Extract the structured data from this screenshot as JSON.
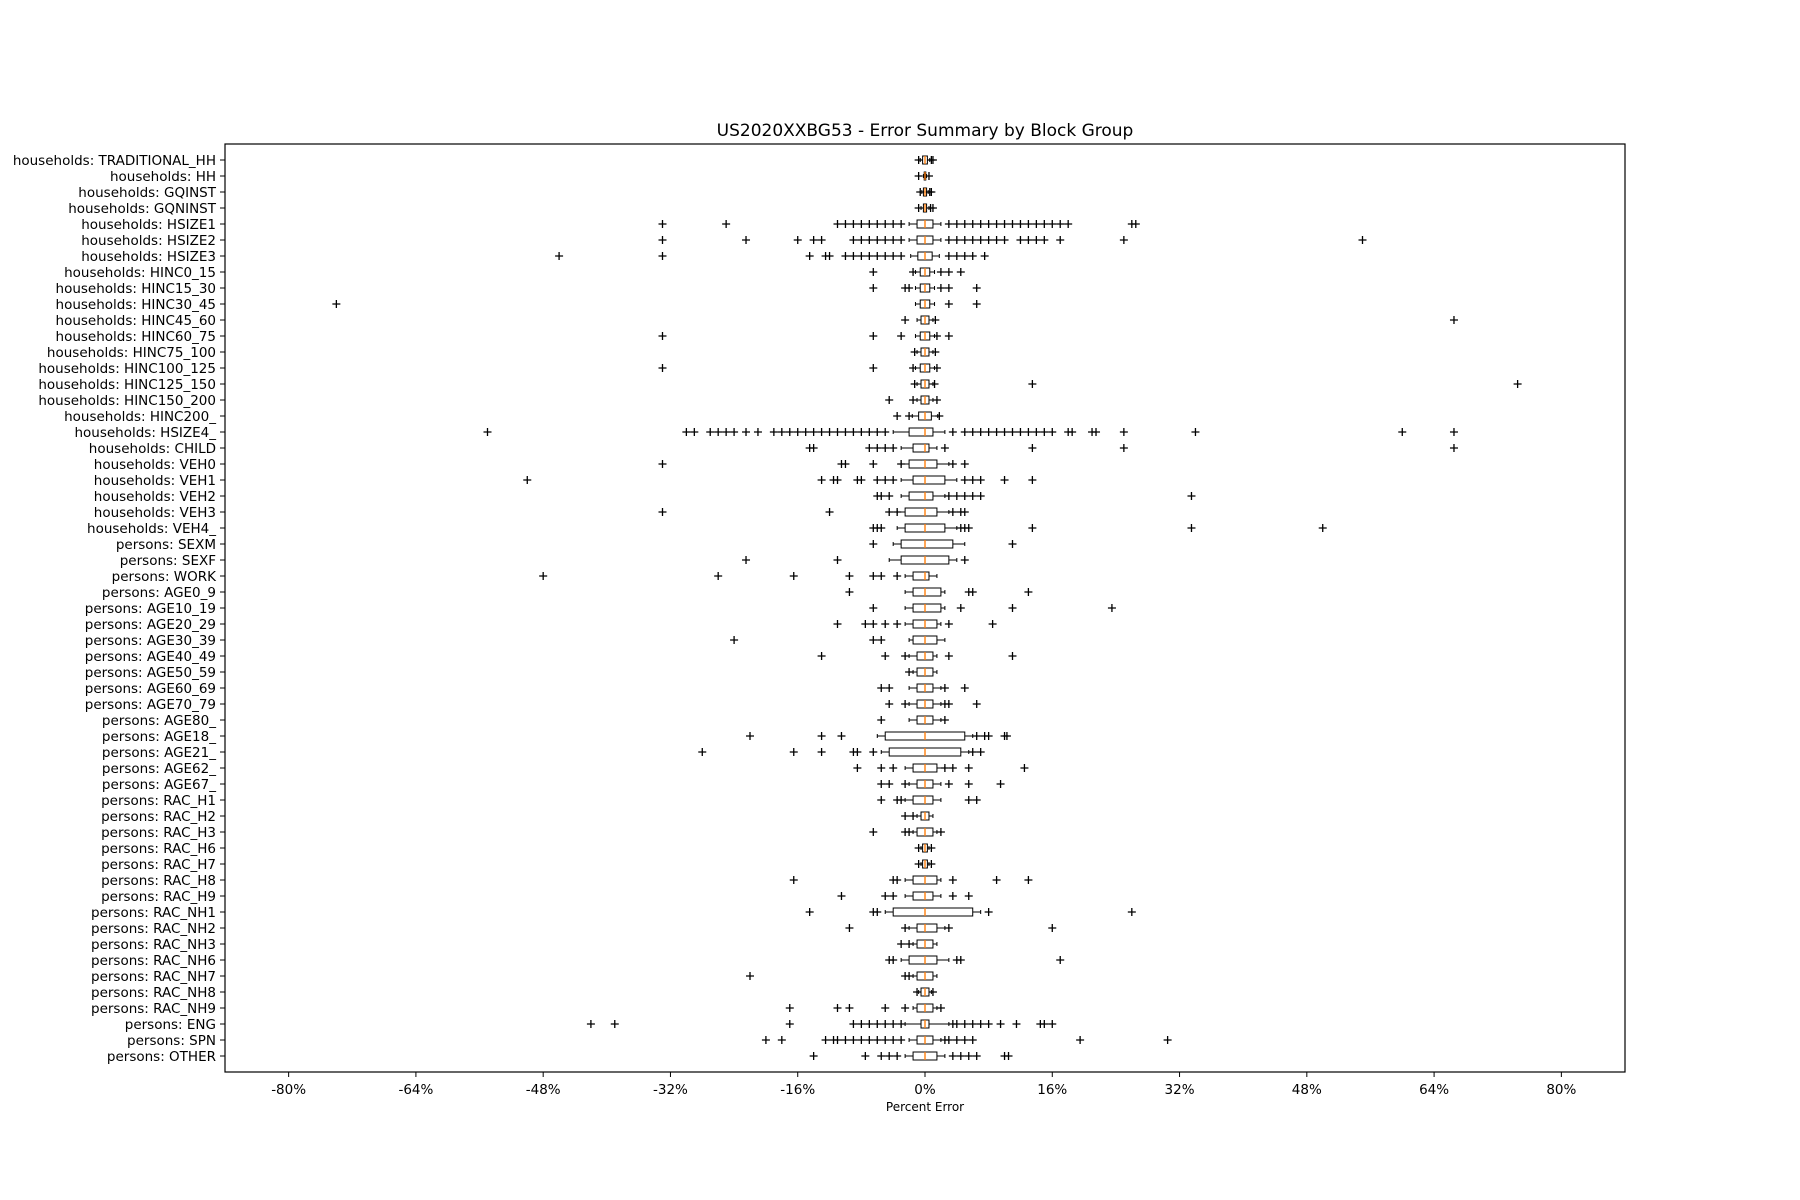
{
  "chart_data": {
    "type": "boxplot",
    "title": "US2020XXBG53 - Error Summary by Block Group",
    "xlabel": "Percent Error",
    "ylabel": "",
    "xlim": [
      -88,
      88
    ],
    "xticks": [
      -80,
      -64,
      -48,
      -32,
      -16,
      0,
      16,
      32,
      48,
      64,
      80
    ],
    "xtick_labels": [
      "-80%",
      "-64%",
      "-48%",
      "-32%",
      "-16%",
      "0%",
      "16%",
      "32%",
      "48%",
      "64%",
      "80%"
    ],
    "orientation": "horizontal",
    "grid": false,
    "colors": {
      "median": "#ff7f0e",
      "box": "#000000",
      "flier": "#000000"
    },
    "categories": [
      "households: TRADITIONAL_HH",
      "households: HH",
      "households: GQINST",
      "households: GQNINST",
      "households: HSIZE1",
      "households: HSIZE2",
      "households: HSIZE3",
      "households: HINC0_15",
      "households: HINC15_30",
      "households: HINC30_45",
      "households: HINC45_60",
      "households: HINC60_75",
      "households: HINC75_100",
      "households: HINC100_125",
      "households: HINC125_150",
      "households: HINC150_200",
      "households: HINC200_",
      "households: HSIZE4_",
      "households: CHILD",
      "households: VEH0",
      "households: VEH1",
      "households: VEH2",
      "households: VEH3",
      "households: VEH4_",
      "persons: SEXM",
      "persons: SEXF",
      "persons: WORK",
      "persons: AGE0_9",
      "persons: AGE10_19",
      "persons: AGE20_29",
      "persons: AGE30_39",
      "persons: AGE40_49",
      "persons: AGE50_59",
      "persons: AGE60_69",
      "persons: AGE70_79",
      "persons: AGE80_",
      "persons: AGE18_",
      "persons: AGE21_",
      "persons: AGE62_",
      "persons: AGE67_",
      "persons: RAC_H1",
      "persons: RAC_H2",
      "persons: RAC_H3",
      "persons: RAC_H6",
      "persons: RAC_H7",
      "persons: RAC_H8",
      "persons: RAC_H9",
      "persons: RAC_NH1",
      "persons: RAC_NH2",
      "persons: RAC_NH3",
      "persons: RAC_NH6",
      "persons: RAC_NH7",
      "persons: RAC_NH8",
      "persons: RAC_NH9",
      "persons: ENG",
      "persons: SPN",
      "persons: OTHER"
    ],
    "series": [
      {
        "q1": -0.3,
        "median": 0,
        "q3": 0.3,
        "whisker": [
          -0.6,
          0.6
        ],
        "fliers": [
          -0.8,
          0.8,
          1.0
        ]
      },
      {
        "q1": -0.1,
        "median": 0,
        "q3": 0.1,
        "whisker": [
          -0.2,
          0.2
        ],
        "fliers": [
          -0.8,
          0.5
        ]
      },
      {
        "q1": -0.2,
        "median": 0,
        "q3": 0.2,
        "whisker": [
          -0.4,
          0.4
        ],
        "fliers": [
          -0.6,
          0.6,
          0.8
        ]
      },
      {
        "q1": -0.2,
        "median": 0,
        "q3": 0.2,
        "whisker": [
          -0.5,
          0.5
        ],
        "fliers": [
          -0.8,
          0.7,
          1.0
        ]
      },
      {
        "q1": -1.0,
        "median": 0,
        "q3": 1.0,
        "whisker": [
          -2,
          2
        ],
        "fliers": [
          -33,
          -25,
          -11,
          -10,
          -9,
          -8,
          -7,
          -6,
          -5,
          -4,
          -3,
          3,
          4,
          5,
          6,
          7,
          8,
          9,
          10,
          11,
          12,
          13,
          14,
          15,
          16,
          17,
          18,
          26,
          26.5
        ]
      },
      {
        "q1": -1.0,
        "median": 0,
        "q3": 1.0,
        "whisker": [
          -2,
          2
        ],
        "fliers": [
          -33,
          -22.5,
          -16,
          -14,
          -13,
          -9,
          -8,
          -7,
          -6,
          -5,
          -4,
          -3,
          3,
          4,
          5,
          6,
          7,
          8,
          9,
          10,
          12,
          13,
          14,
          15,
          17,
          25,
          55
        ]
      },
      {
        "q1": -0.9,
        "median": 0,
        "q3": 0.9,
        "whisker": [
          -1.8,
          1.8
        ],
        "fliers": [
          -46,
          -33,
          -14.5,
          -12.5,
          -12,
          -10,
          -9,
          -8,
          -7,
          -6,
          -5,
          -4,
          -3,
          3,
          4,
          5,
          6,
          7.5
        ]
      },
      {
        "q1": -0.6,
        "median": 0,
        "q3": 0.6,
        "whisker": [
          -1.2,
          1.2
        ],
        "fliers": [
          -6.5,
          -1.5,
          2,
          3,
          4.5
        ]
      },
      {
        "q1": -0.6,
        "median": 0,
        "q3": 0.6,
        "whisker": [
          -1.2,
          1.2
        ],
        "fliers": [
          -6.5,
          -2.5,
          -2,
          2,
          3,
          6.5
        ]
      },
      {
        "q1": -0.6,
        "median": 0,
        "q3": 0.6,
        "whisker": [
          -1.2,
          1.2
        ],
        "fliers": [
          -74,
          3,
          6.5
        ]
      },
      {
        "q1": -0.5,
        "median": 0,
        "q3": 0.5,
        "whisker": [
          -1,
          1
        ],
        "fliers": [
          -2.5,
          1.3,
          66.5
        ]
      },
      {
        "q1": -0.6,
        "median": 0,
        "q3": 0.6,
        "whisker": [
          -1.2,
          1.2
        ],
        "fliers": [
          -33,
          -6.5,
          -3,
          1.5,
          3
        ]
      },
      {
        "q1": -0.5,
        "median": 0,
        "q3": 0.5,
        "whisker": [
          -1,
          1
        ],
        "fliers": [
          -1.3,
          1.3
        ]
      },
      {
        "q1": -0.6,
        "median": 0,
        "q3": 0.6,
        "whisker": [
          -1.2,
          1.2
        ],
        "fliers": [
          -33,
          -6.5,
          -1.5,
          1.5
        ]
      },
      {
        "q1": -0.5,
        "median": 0,
        "q3": 0.5,
        "whisker": [
          -1,
          1
        ],
        "fliers": [
          -1.3,
          1.2,
          13.5,
          74.5
        ]
      },
      {
        "q1": -0.5,
        "median": 0,
        "q3": 0.5,
        "whisker": [
          -1,
          1
        ],
        "fliers": [
          -4.5,
          -1.5,
          1.5
        ]
      },
      {
        "q1": -0.8,
        "median": 0,
        "q3": 0.8,
        "whisker": [
          -1.6,
          1.6
        ],
        "fliers": [
          -3.5,
          -2,
          1.8
        ]
      },
      {
        "q1": -2.0,
        "median": 0,
        "q3": 1.0,
        "whisker": [
          -4,
          2.5
        ],
        "fliers": [
          -55,
          -30,
          -29,
          -27,
          -26,
          -25,
          -24,
          -22.5,
          -21,
          -19,
          -18,
          -17,
          -16,
          -15,
          -14,
          -13,
          -12,
          -11,
          -10,
          -9,
          -8,
          -7,
          -6,
          -5,
          3.5,
          5,
          6,
          7,
          8,
          9,
          10,
          11,
          12,
          13,
          14,
          15,
          16,
          18,
          18.5,
          21,
          21.5,
          25,
          34,
          60,
          66.5
        ]
      },
      {
        "q1": -1.5,
        "median": 0,
        "q3": 0.5,
        "whisker": [
          -3,
          1.5
        ],
        "fliers": [
          -14.5,
          -14,
          -7,
          -6,
          -5,
          -4,
          2.5,
          13.5,
          25,
          66.5
        ]
      },
      {
        "q1": -2.0,
        "median": 0,
        "q3": 1.5,
        "whisker": [
          -3,
          3
        ],
        "fliers": [
          -33,
          -10.5,
          -10,
          -6.5,
          -3,
          3.5,
          5
        ]
      },
      {
        "q1": -1.5,
        "median": 0,
        "q3": 2.5,
        "whisker": [
          -3,
          4
        ],
        "fliers": [
          -50,
          -13,
          -11.5,
          -11,
          -8.5,
          -8,
          -6,
          -5,
          -4,
          5,
          6,
          7,
          10,
          13.5
        ]
      },
      {
        "q1": -2.0,
        "median": 0,
        "q3": 1.0,
        "whisker": [
          -3,
          2.5
        ],
        "fliers": [
          -6,
          -5.5,
          -4.5,
          3,
          4,
          5,
          6,
          7,
          33.5
        ]
      },
      {
        "q1": -2.5,
        "median": 0,
        "q3": 1.5,
        "whisker": [
          -3.5,
          3
        ],
        "fliers": [
          -33,
          -12,
          -4.5,
          -3.5,
          3.5,
          4.5,
          5
        ]
      },
      {
        "q1": -2.5,
        "median": 0,
        "q3": 2.5,
        "whisker": [
          -3.5,
          4
        ],
        "fliers": [
          -6.5,
          -6,
          -5.5,
          4.5,
          5,
          5.5,
          13.5,
          33.5,
          50
        ]
      },
      {
        "q1": -3.0,
        "median": 0,
        "q3": 3.5,
        "whisker": [
          -4,
          5
        ],
        "fliers": [
          -6.5,
          11
        ]
      },
      {
        "q1": -3.0,
        "median": 0,
        "q3": 3.0,
        "whisker": [
          -4.5,
          4
        ],
        "fliers": [
          -22.5,
          -11,
          5
        ]
      },
      {
        "q1": -1.5,
        "median": 0,
        "q3": 0.5,
        "whisker": [
          -2.5,
          1.5
        ],
        "fliers": [
          -48,
          -26,
          -16.5,
          -9.5,
          -6.5,
          -5.5,
          -3.5
        ]
      },
      {
        "q1": -1.5,
        "median": 0,
        "q3": 2.0,
        "whisker": [
          -2.5,
          2.5
        ],
        "fliers": [
          -9.5,
          5.5,
          6,
          13
        ]
      },
      {
        "q1": -1.5,
        "median": 0,
        "q3": 2.0,
        "whisker": [
          -2.5,
          2.5
        ],
        "fliers": [
          -6.5,
          4.5,
          11,
          23.5
        ]
      },
      {
        "q1": -1.5,
        "median": 0,
        "q3": 1.5,
        "whisker": [
          -2.5,
          2
        ],
        "fliers": [
          -11,
          -7.5,
          -6.5,
          -5,
          -3.5,
          3,
          8.5
        ]
      },
      {
        "q1": -1.5,
        "median": 0,
        "q3": 1.5,
        "whisker": [
          -2,
          2.5
        ],
        "fliers": [
          -24,
          -6.5,
          -5.5
        ]
      },
      {
        "q1": -1.0,
        "median": 0,
        "q3": 1.0,
        "whisker": [
          -2,
          1.5
        ],
        "fliers": [
          -13,
          -5,
          -2.5,
          3,
          11
        ]
      },
      {
        "q1": -1.0,
        "median": 0,
        "q3": 1.0,
        "whisker": [
          -1.5,
          1.5
        ],
        "fliers": [
          -2
        ]
      },
      {
        "q1": -1.0,
        "median": 0,
        "q3": 1.0,
        "whisker": [
          -2,
          2
        ],
        "fliers": [
          -5.5,
          -4.5,
          2.5,
          5
        ]
      },
      {
        "q1": -1.0,
        "median": 0,
        "q3": 1.0,
        "whisker": [
          -2,
          2
        ],
        "fliers": [
          -4.5,
          -2.5,
          2.5,
          3,
          6.5
        ]
      },
      {
        "q1": -1.0,
        "median": 0,
        "q3": 1.0,
        "whisker": [
          -2,
          2
        ],
        "fliers": [
          -5.5,
          2.5
        ]
      },
      {
        "q1": -5.0,
        "median": 0,
        "q3": 5.0,
        "whisker": [
          -6,
          6
        ],
        "fliers": [
          -22,
          -13,
          -10.5,
          6.5,
          7.5,
          8,
          10,
          10.3
        ]
      },
      {
        "q1": -4.5,
        "median": 0,
        "q3": 4.5,
        "whisker": [
          -5.5,
          5.5
        ],
        "fliers": [
          -28,
          -16.5,
          -13,
          -9,
          -8.5,
          -6.5,
          6,
          7
        ]
      },
      {
        "q1": -1.5,
        "median": 0,
        "q3": 1.5,
        "whisker": [
          -2.5,
          2.5
        ],
        "fliers": [
          -8.5,
          -5.5,
          -4,
          2.5,
          3.5,
          5.5,
          12.5
        ]
      },
      {
        "q1": -1.0,
        "median": 0,
        "q3": 1.0,
        "whisker": [
          -2,
          2
        ],
        "fliers": [
          -5.5,
          -4.5,
          -2.5,
          3,
          5.5,
          9.5
        ]
      },
      {
        "q1": -1.5,
        "median": 0,
        "q3": 1.0,
        "whisker": [
          -2.5,
          2
        ],
        "fliers": [
          -5.5,
          -3.5,
          -3,
          5.5,
          6.5
        ]
      },
      {
        "q1": -0.5,
        "median": 0,
        "q3": 0.5,
        "whisker": [
          -1,
          1
        ],
        "fliers": [
          -2.5,
          -1.5
        ]
      },
      {
        "q1": -1.0,
        "median": 0,
        "q3": 1.0,
        "whisker": [
          -1.5,
          1.5
        ],
        "fliers": [
          -6.5,
          -2.5,
          -2,
          2
        ]
      },
      {
        "q1": -0.3,
        "median": 0,
        "q3": 0.3,
        "whisker": [
          -0.5,
          0.5
        ],
        "fliers": [
          -0.8,
          0.8
        ]
      },
      {
        "q1": -0.3,
        "median": 0,
        "q3": 0.3,
        "whisker": [
          -0.5,
          0.5
        ],
        "fliers": [
          -0.8,
          0.8
        ]
      },
      {
        "q1": -1.5,
        "median": 0,
        "q3": 1.5,
        "whisker": [
          -2.5,
          2
        ],
        "fliers": [
          -16.5,
          -4,
          -3.5,
          3.5,
          9,
          13
        ]
      },
      {
        "q1": -1.5,
        "median": 0,
        "q3": 1.0,
        "whisker": [
          -2.5,
          2
        ],
        "fliers": [
          -10.5,
          -5,
          -4,
          3.5,
          5.5
        ]
      },
      {
        "q1": -4.0,
        "median": 0,
        "q3": 6.0,
        "whisker": [
          -5,
          7
        ],
        "fliers": [
          -14.5,
          -6.5,
          -6,
          8,
          26
        ]
      },
      {
        "q1": -1.0,
        "median": 0,
        "q3": 1.5,
        "whisker": [
          -2,
          2.5
        ],
        "fliers": [
          -9.5,
          -2.5,
          3,
          16
        ]
      },
      {
        "q1": -1.0,
        "median": 0,
        "q3": 1.0,
        "whisker": [
          -1.5,
          1.5
        ],
        "fliers": [
          -3,
          -2
        ]
      },
      {
        "q1": -2.0,
        "median": 0,
        "q3": 1.5,
        "whisker": [
          -3,
          3
        ],
        "fliers": [
          -4.5,
          -4,
          4,
          4.5,
          17
        ]
      },
      {
        "q1": -1.0,
        "median": 0,
        "q3": 1.0,
        "whisker": [
          -1.5,
          1.5
        ],
        "fliers": [
          -22,
          -2.5,
          -2
        ]
      },
      {
        "q1": -0.5,
        "median": 0,
        "q3": 0.5,
        "whisker": [
          -0.8,
          0.8
        ],
        "fliers": [
          -1,
          1
        ]
      },
      {
        "q1": -1.0,
        "median": 0,
        "q3": 1.0,
        "whisker": [
          -1.5,
          1.5
        ],
        "fliers": [
          -17,
          -11,
          -9.5,
          -5,
          -2.5,
          2
        ]
      },
      {
        "q1": -0.5,
        "median": 0,
        "q3": 0.5,
        "whisker": [
          -2.5,
          3
        ],
        "fliers": [
          -42,
          -39,
          -17,
          -9,
          -8,
          -7,
          -6,
          -5,
          -4,
          -3,
          3.5,
          4,
          5,
          6,
          7,
          8,
          9.5,
          11.5,
          14.5,
          15,
          16
        ]
      },
      {
        "q1": -1.0,
        "median": 0,
        "q3": 1.0,
        "whisker": [
          -2,
          2
        ],
        "fliers": [
          -20,
          -18,
          -12.5,
          -11.5,
          -11,
          -10,
          -9,
          -8,
          -7,
          -6,
          -5,
          -4,
          -3,
          2.5,
          3,
          4,
          5,
          6,
          19.5,
          30.5
        ]
      },
      {
        "q1": -1.5,
        "median": 0,
        "q3": 1.5,
        "whisker": [
          -2.5,
          2.5
        ],
        "fliers": [
          -14,
          -7.5,
          -5.5,
          -4.5,
          -3.5,
          3.5,
          4.5,
          5.5,
          6.5,
          10,
          10.5
        ]
      }
    ]
  }
}
